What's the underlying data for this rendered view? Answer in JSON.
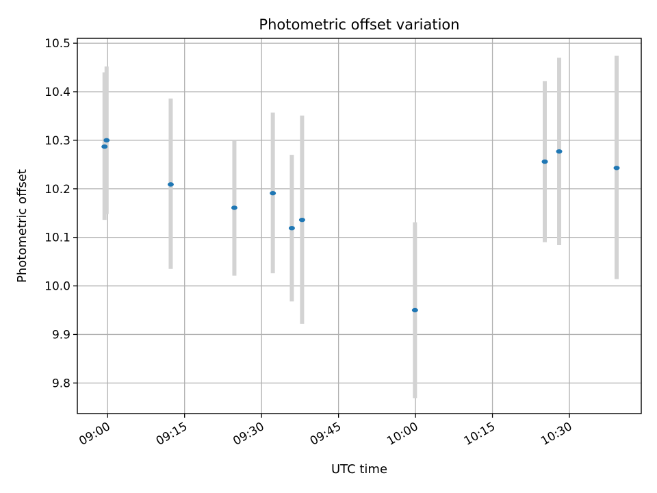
{
  "chart_data": {
    "type": "scatter",
    "title": "Photometric offset variation",
    "xlabel": "UTC time",
    "ylabel": "Photometric offset",
    "x_ticks": [
      "09:00",
      "09:15",
      "09:30",
      "09:45",
      "10:00",
      "10:15",
      "10:30"
    ],
    "x_tick_minutes": [
      540,
      555,
      570,
      585,
      600,
      615,
      630
    ],
    "xlim_minutes": [
      534.1,
      644
    ],
    "y_ticks": [
      "9.8",
      "9.9",
      "10.0",
      "10.1",
      "10.2",
      "10.3",
      "10.4",
      "10.5"
    ],
    "y_tick_values": [
      9.8,
      9.9,
      10.0,
      10.1,
      10.2,
      10.3,
      10.4,
      10.5
    ],
    "ylim": [
      9.737,
      10.51
    ],
    "grid": true,
    "points": [
      {
        "time": "08:59.4",
        "t": 539.4,
        "y": 10.287,
        "err_low": 10.136,
        "err_high": 10.44
      },
      {
        "time": "08:59.8",
        "t": 539.8,
        "y": 10.3,
        "err_low": 10.148,
        "err_high": 10.452
      },
      {
        "time": "09:12.3",
        "t": 552.3,
        "y": 10.209,
        "err_low": 10.035,
        "err_high": 10.386
      },
      {
        "time": "09:24.7",
        "t": 564.7,
        "y": 10.161,
        "err_low": 10.021,
        "err_high": 10.3
      },
      {
        "time": "09:32.2",
        "t": 572.2,
        "y": 10.191,
        "err_low": 10.026,
        "err_high": 10.357
      },
      {
        "time": "09:35.9",
        "t": 575.9,
        "y": 10.119,
        "err_low": 9.968,
        "err_high": 10.27
      },
      {
        "time": "09:37.9",
        "t": 577.9,
        "y": 10.136,
        "err_low": 9.922,
        "err_high": 10.351
      },
      {
        "time": "09:59.9",
        "t": 599.9,
        "y": 9.95,
        "err_low": 9.769,
        "err_high": 10.131
      },
      {
        "time": "10:25.2",
        "t": 625.2,
        "y": 10.256,
        "err_low": 10.09,
        "err_high": 10.422
      },
      {
        "time": "10:28.0",
        "t": 628.0,
        "y": 10.277,
        "err_low": 10.084,
        "err_high": 10.47
      },
      {
        "time": "10:39.2",
        "t": 639.2,
        "y": 10.243,
        "err_low": 10.014,
        "err_high": 10.474
      }
    ],
    "colors": {
      "marker": "#1f77b4",
      "errorbar": "#d3d3d3",
      "grid": "#b0b0b0"
    }
  }
}
